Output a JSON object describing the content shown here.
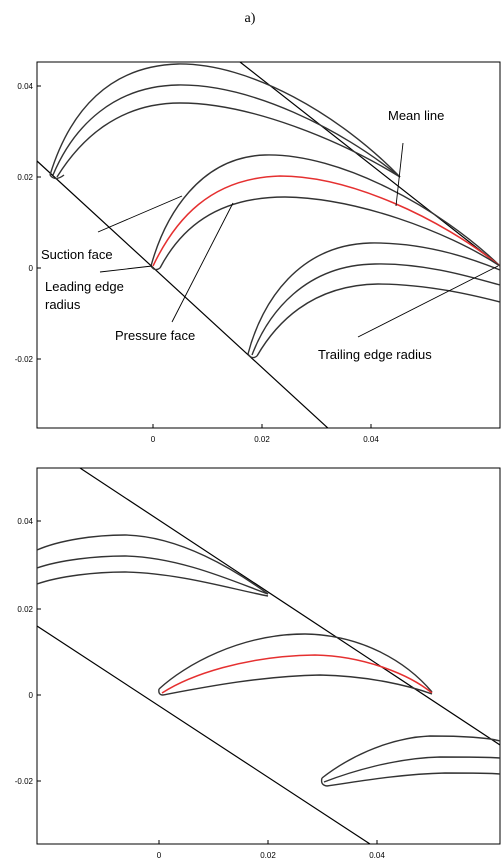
{
  "caption": "a)",
  "top_plot": {
    "y_ticks": [
      "0.04",
      "0.02",
      "0",
      "-0.02"
    ],
    "x_ticks": [
      "0",
      "0.02",
      "0.04"
    ],
    "labels": {
      "mean_line": "Mean line",
      "suction_face": "Suction face",
      "leading_edge_1": "Leading edge",
      "leading_edge_2": "radius",
      "pressure_face": "Pressure face",
      "trailing_edge": "Trailing edge radius"
    }
  },
  "bottom_plot": {
    "y_ticks": [
      "0.04",
      "0.02",
      "0",
      "-0.02"
    ],
    "x_ticks": [
      "0",
      "0.02",
      "0.04"
    ]
  },
  "colors": {
    "mean_line": "#e53030",
    "blade_outline": "#333333"
  }
}
